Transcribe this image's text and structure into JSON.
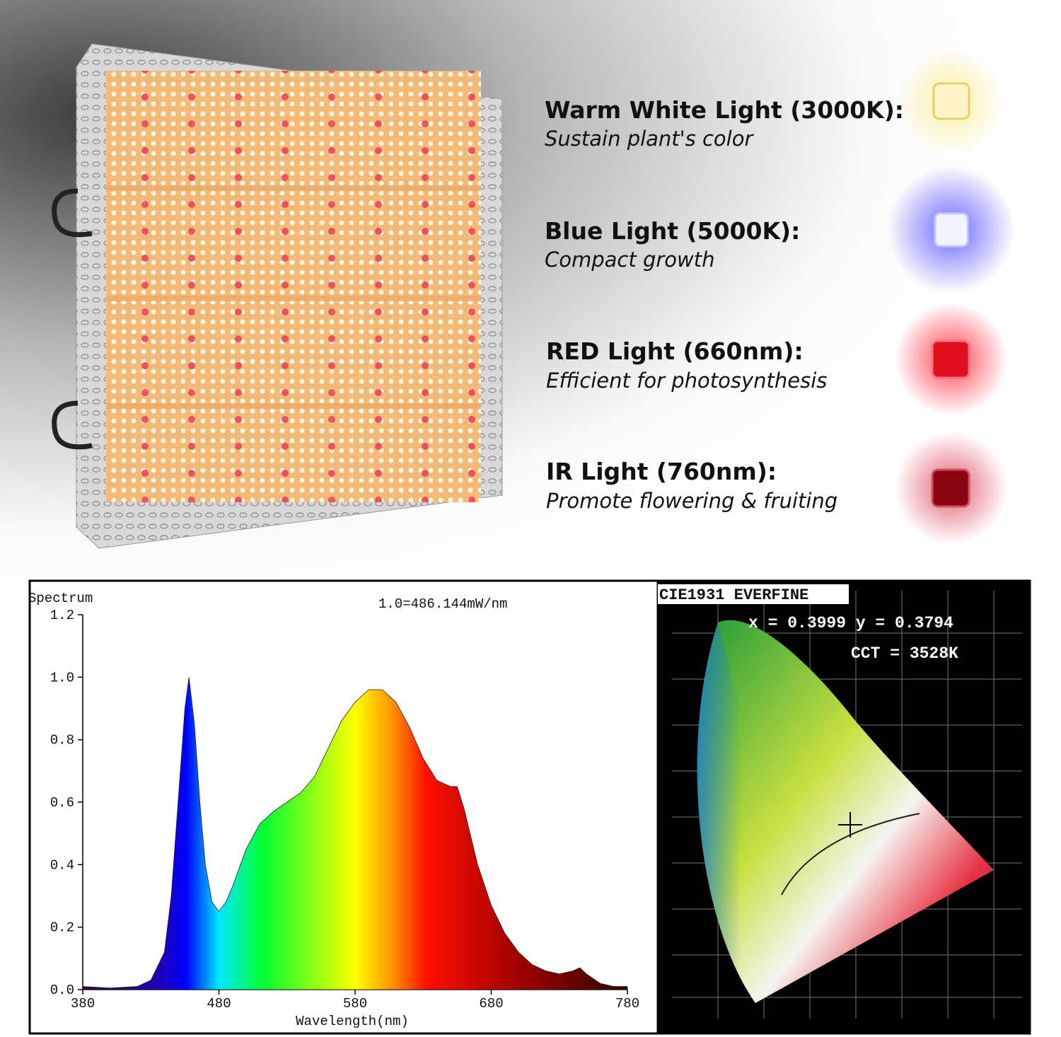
{
  "features": [
    {
      "title": "Warm White Light (3000K):",
      "subtitle": "Sustain plant's color"
    },
    {
      "title": "Blue Light (5000K):",
      "subtitle": "Compact growth"
    },
    {
      "title": "RED Light (660nm):",
      "subtitle": "Efficient for photosynthesis"
    },
    {
      "title": "IR Light (760nm):",
      "subtitle": "Promote flowering & fruiting"
    }
  ],
  "chart_data": {
    "type": "area",
    "y_label": "Spectrum",
    "annotation": "1.0=486.144mW/nm",
    "x_label": "Wavelength(nm)",
    "x": [
      380,
      400,
      420,
      430,
      440,
      445,
      450,
      455,
      458,
      462,
      466,
      470,
      475,
      480,
      485,
      490,
      500,
      510,
      520,
      530,
      540,
      550,
      560,
      570,
      580,
      590,
      600,
      610,
      620,
      630,
      640,
      650,
      655,
      660,
      670,
      680,
      690,
      700,
      710,
      720,
      730,
      740,
      745,
      750,
      760,
      770,
      780
    ],
    "values": [
      0.01,
      0.005,
      0.01,
      0.03,
      0.12,
      0.3,
      0.6,
      0.9,
      1.0,
      0.85,
      0.6,
      0.4,
      0.28,
      0.25,
      0.28,
      0.33,
      0.45,
      0.53,
      0.57,
      0.6,
      0.63,
      0.68,
      0.77,
      0.86,
      0.92,
      0.96,
      0.96,
      0.92,
      0.84,
      0.74,
      0.67,
      0.65,
      0.65,
      0.58,
      0.4,
      0.27,
      0.18,
      0.12,
      0.08,
      0.06,
      0.05,
      0.06,
      0.07,
      0.05,
      0.02,
      0.01,
      0.01
    ],
    "xlim": [
      380,
      780
    ],
    "xticks": [
      380,
      480,
      580,
      680,
      780
    ],
    "ylim": [
      0,
      1.2
    ],
    "yticks": [
      {
        "value": 0,
        "label": "0.0"
      },
      0.2,
      0.4,
      0.6,
      0.8,
      {
        "value": 1,
        "label": "1.0"
      },
      1.2
    ]
  },
  "cie": {
    "title": "CIE1931 EVERFINE",
    "coords": "x = 0.3999 y = 0.3794",
    "cct": "CCT = 3528K"
  }
}
